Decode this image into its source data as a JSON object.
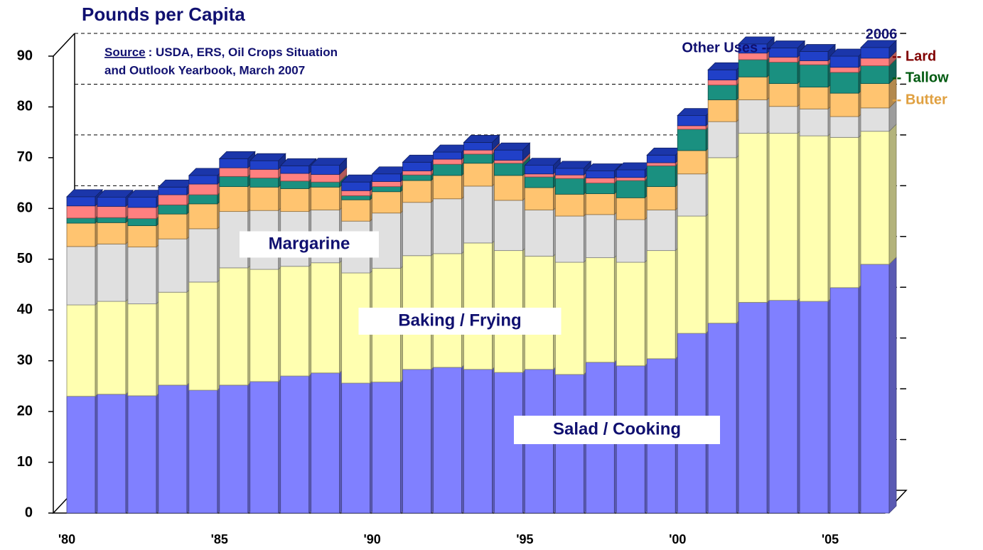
{
  "chart_data": {
    "type": "bar3d_stacked",
    "title": "Pounds per Capita",
    "source": {
      "label": "Source",
      "text": ": USDA, ERS, Oil Crops Situation",
      "text2": "and Outlook Yearbook, March 2007"
    },
    "annotation": "2006",
    "categories": [
      "'80",
      null,
      null,
      null,
      null,
      "'85",
      null,
      null,
      null,
      null,
      "'90",
      null,
      null,
      null,
      null,
      "'95",
      null,
      null,
      null,
      null,
      "'00",
      null,
      null,
      null,
      null,
      "'05",
      null
    ],
    "series": [
      {
        "name": "Salad / Cooking",
        "color": "#8080ff",
        "values": [
          23.0,
          23.4,
          23.1,
          25.2,
          24.2,
          25.2,
          25.9,
          27.0,
          27.6,
          25.6,
          25.8,
          28.3,
          28.7,
          28.3,
          27.7,
          28.3,
          27.3,
          29.7,
          29.0,
          30.4,
          35.4,
          37.4,
          41.5,
          41.9,
          41.7,
          44.4,
          49.0
        ]
      },
      {
        "name": "Baking / Frying",
        "color": "#ffffb0",
        "values": [
          18.0,
          18.3,
          18.1,
          18.3,
          21.3,
          23.1,
          22.1,
          21.6,
          21.7,
          21.7,
          22.4,
          22.4,
          22.4,
          24.9,
          24.0,
          22.3,
          22.1,
          20.6,
          20.4,
          21.3,
          23.1,
          32.6,
          33.3,
          32.9,
          32.6,
          29.6,
          26.2
        ]
      },
      {
        "name": "Margarine",
        "color": "#e0e0e0",
        "values": [
          11.5,
          11.3,
          11.2,
          10.5,
          10.5,
          11.1,
          11.6,
          10.8,
          10.4,
          10.2,
          10.9,
          10.5,
          10.8,
          11.2,
          9.9,
          9.1,
          9.1,
          8.5,
          8.4,
          8.0,
          8.3,
          7.1,
          6.6,
          5.3,
          5.3,
          4.1,
          4.6
        ]
      },
      {
        "name": "-- Butter",
        "color": "#ffc470",
        "label_color": "#e0a040",
        "values": [
          4.6,
          4.2,
          4.2,
          4.9,
          4.9,
          4.9,
          4.6,
          4.5,
          4.5,
          4.2,
          4.2,
          4.3,
          4.6,
          4.5,
          4.9,
          4.4,
          4.3,
          4.1,
          4.3,
          4.6,
          4.6,
          4.3,
          4.5,
          4.5,
          4.3,
          4.6,
          4.8
        ]
      },
      {
        "name": "-- Tallow",
        "color": "#1a9080",
        "label_color": "#005a10",
        "values": [
          1.0,
          1.0,
          1.4,
          1.8,
          1.8,
          2.0,
          1.8,
          1.5,
          1.0,
          0.8,
          1.0,
          1.1,
          2.2,
          1.8,
          2.4,
          2.1,
          3.1,
          2.1,
          3.4,
          4.1,
          4.2,
          2.9,
          3.4,
          4.2,
          4.4,
          4.1,
          3.5
        ]
      },
      {
        "name": "-- Lard",
        "color": "#ff8080",
        "label_color": "#800000",
        "values": [
          2.4,
          2.2,
          2.2,
          2.0,
          2.1,
          1.7,
          1.7,
          1.5,
          1.5,
          1.0,
          1.0,
          0.8,
          1.0,
          0.8,
          0.6,
          0.6,
          0.7,
          1.0,
          0.6,
          0.6,
          0.7,
          1.0,
          1.3,
          1.0,
          0.8,
          1.0,
          1.5
        ]
      },
      {
        "name": "Other Uses --",
        "color": "#2040c8",
        "label_color": "#101070",
        "values": [
          1.8,
          1.8,
          2.0,
          1.5,
          1.7,
          1.8,
          1.7,
          1.5,
          1.8,
          1.7,
          1.5,
          1.7,
          1.4,
          1.5,
          2.0,
          1.7,
          1.3,
          1.4,
          1.5,
          1.5,
          2.0,
          2.0,
          1.8,
          1.8,
          1.8,
          2.2,
          2.1
        ]
      }
    ],
    "ylim": [
      0,
      90
    ],
    "yticks": [
      0,
      10,
      20,
      30,
      40,
      50,
      60,
      70,
      80,
      90
    ],
    "grid": true
  }
}
